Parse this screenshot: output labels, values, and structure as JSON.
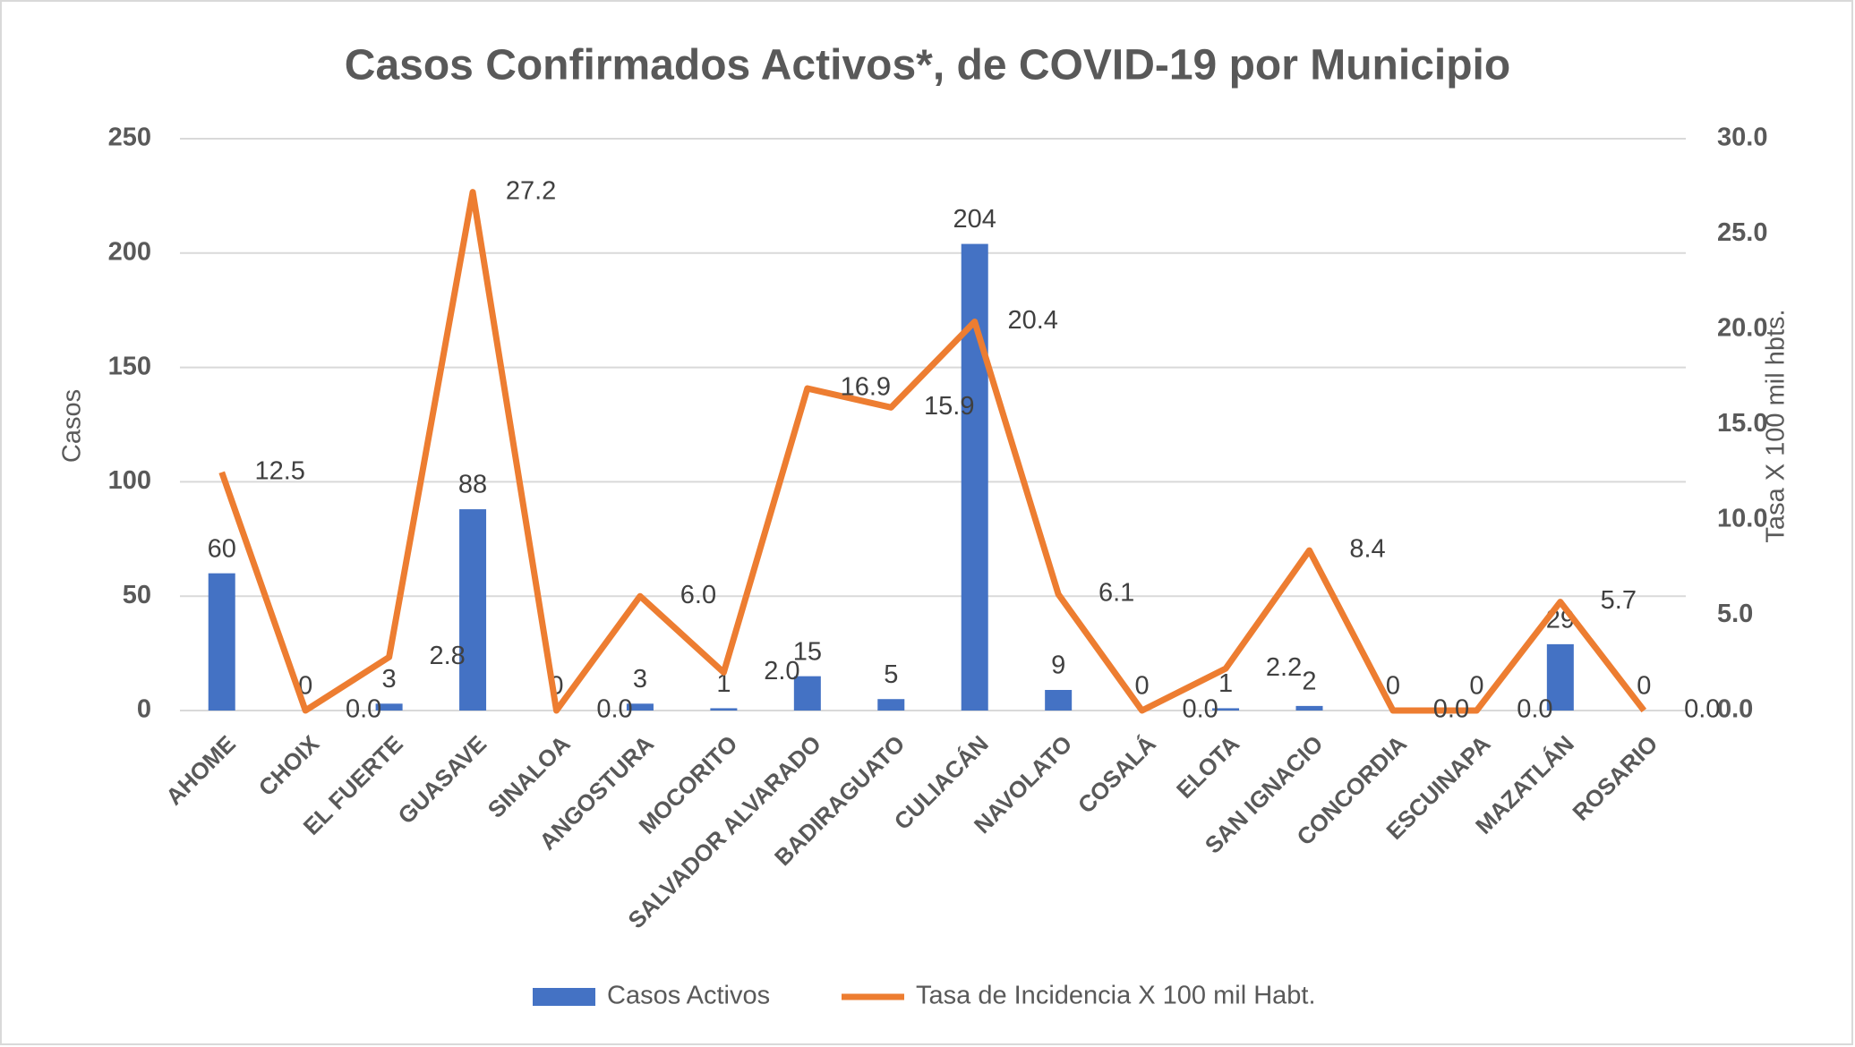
{
  "chart_data": {
    "type": "bar_line",
    "title": "Casos Confirmados Activos*, de COVID-19 por Municipio",
    "ylabel": "Casos",
    "y2label": "Tasa X 100 mil hbts.",
    "categories": [
      "AHOME",
      "CHOIX",
      "EL FUERTE",
      "GUASAVE",
      "SINALOA",
      "ANGOSTURA",
      "MOCORITO",
      "SALVADOR ALVARADO",
      "BADIRAGUATO",
      "CULIACÁN",
      "NAVOLATO",
      "COSALÁ",
      "ELOTA",
      "SAN IGNACIO",
      "CONCORDIA",
      "ESCUINAPA",
      "MAZATLÁN",
      "ROSARIO"
    ],
    "series": [
      {
        "name": "Casos Activos",
        "type": "bar",
        "color": "#4472c4",
        "values": [
          60,
          0,
          3,
          88,
          0,
          3,
          1,
          15,
          5,
          204,
          9,
          0,
          1,
          2,
          0,
          0,
          29,
          0
        ]
      },
      {
        "name": "Tasa de Incidencia X 100 mil Habt.",
        "type": "line",
        "axis": "y2",
        "color": "#ed7d31",
        "values": [
          12.5,
          0,
          2.8,
          27.2,
          0,
          6,
          2,
          16.9,
          15.9,
          20.4,
          6.1,
          0,
          2.2,
          8.4,
          0,
          0,
          5.7,
          0
        ],
        "value_labels": [
          "12.5",
          "0.0",
          "2.8",
          "27.2",
          "0.0",
          "6.0",
          "2.0",
          "16.9",
          "15.9",
          "20.4",
          "6.1",
          "0.0",
          "2.2",
          "8.4",
          "0.0",
          "0.0",
          "5.7",
          "0.0"
        ]
      }
    ],
    "ylim": [
      0,
      250
    ],
    "yticks": [
      0,
      50,
      100,
      150,
      200,
      250
    ],
    "y2lim": [
      0,
      30
    ],
    "y2ticks": [
      {
        "value": 0,
        "label": "0.0"
      },
      {
        "value": 5,
        "label": "5.0"
      },
      {
        "value": 10,
        "label": "10.0"
      },
      {
        "value": 15,
        "label": "15.0"
      },
      {
        "value": 20,
        "label": "20.0"
      },
      {
        "value": 25,
        "label": "25.0"
      },
      {
        "value": 30,
        "label": "30.0"
      }
    ],
    "grid": true,
    "legend": "bottom"
  }
}
